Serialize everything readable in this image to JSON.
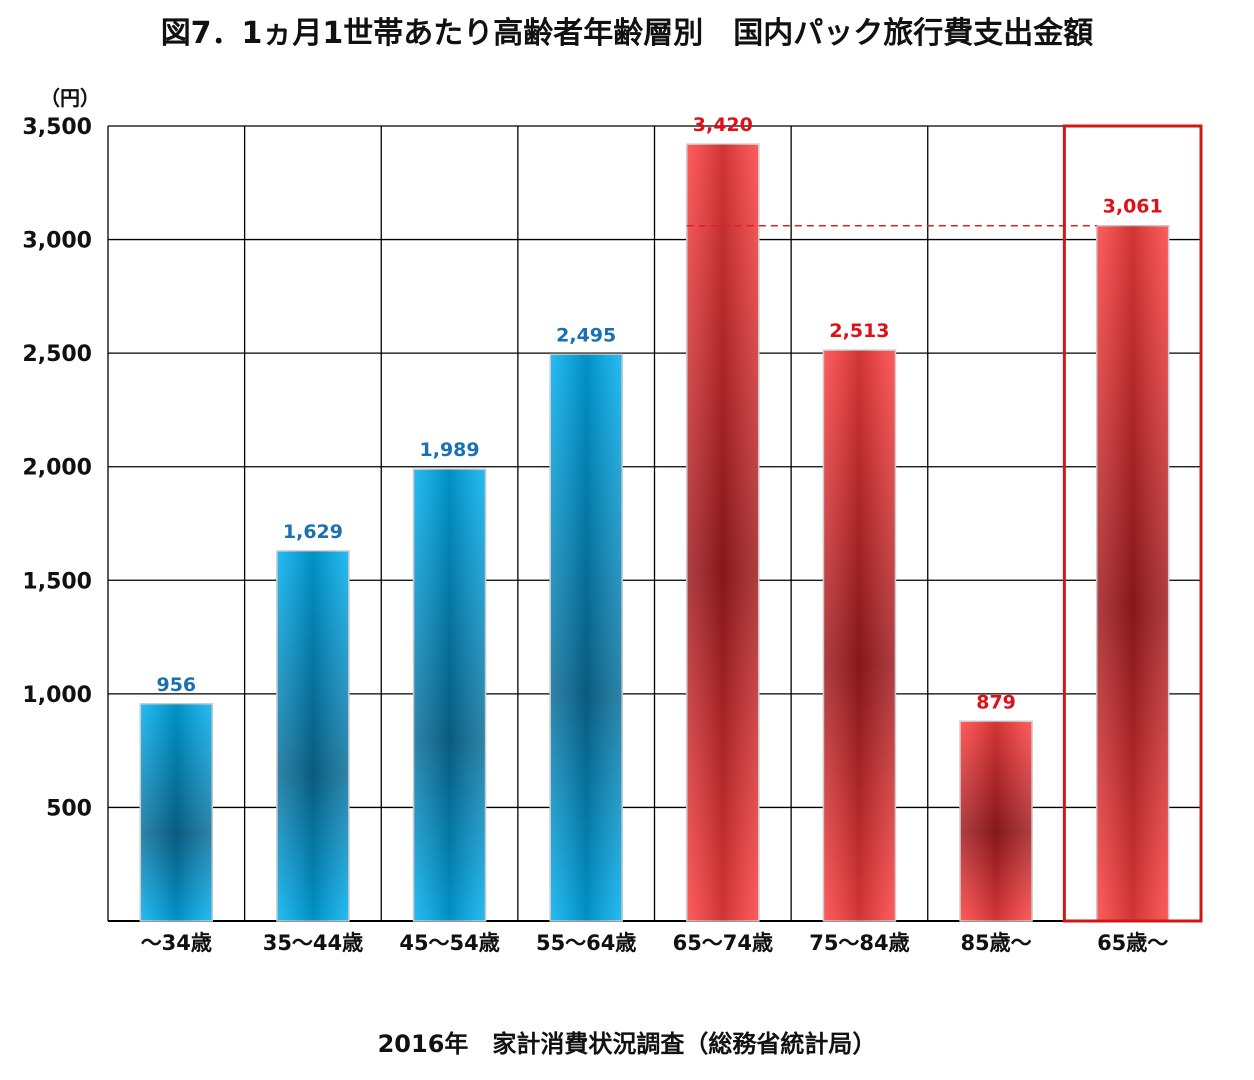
{
  "title": "図7．1ヵ月1世帯あたり高齢者年齢層別　国内パック旅行費支出金額",
  "source": "2016年　家計消費状況調査（総務省統計局）",
  "chart_data": {
    "type": "bar",
    "unit_label": "（円）",
    "categories": [
      "～34歳",
      "35～44歳",
      "45～54歳",
      "55～64歳",
      "65～74歳",
      "75～84歳",
      "85歳～",
      "65歳～"
    ],
    "values": [
      956,
      1629,
      1989,
      2495,
      3420,
      2513,
      879,
      3061
    ],
    "value_labels": [
      "956",
      "1,629",
      "1,989",
      "2,495",
      "3,420",
      "2,513",
      "879",
      "3,061"
    ],
    "ylim": [
      0,
      3500
    ],
    "yticks": [
      500,
      1000,
      1500,
      2000,
      2500,
      3000,
      3500
    ],
    "ytick_labels": [
      "500",
      "1,000",
      "1,500",
      "2,000",
      "2,500",
      "3,000",
      "3,500"
    ],
    "bar_groups": [
      "under65",
      "under65",
      "under65",
      "under65",
      "elderly",
      "elderly",
      "elderly",
      "elderly"
    ],
    "highlighted_category": "65歳～",
    "reference_line_value": 3061,
    "grid": true,
    "colors": {
      "under65": "#00b0f0",
      "under65_dark": "#0a6e99",
      "elderly": "#ff4040",
      "elderly_dark": "#a01c20",
      "under65_label": "#1a70b0",
      "elderly_label": "#e01018",
      "highlight_box": "#d01818",
      "reference_line": "#e02020"
    }
  }
}
